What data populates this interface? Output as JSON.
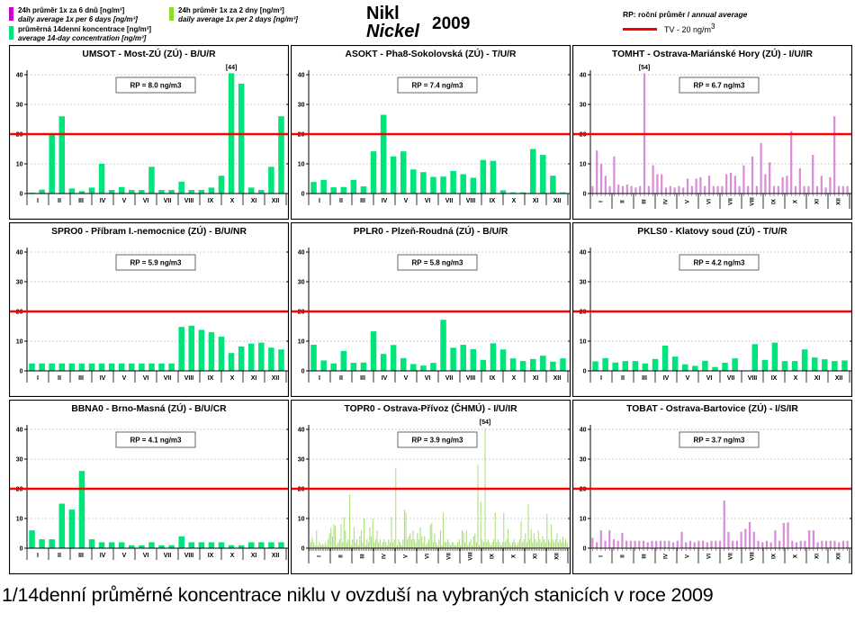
{
  "header": {
    "title_cs": "Nikl",
    "title_en": "Nickel",
    "year": "2009",
    "legends": {
      "six_day": {
        "color": "#CC00CC",
        "line1": "24h průměr 1x za 6 dnů [ng/m³]",
        "line2": "daily average 1x per 6 days [ng/m³]"
      },
      "fourteen_day": {
        "color": "#00E47C",
        "line1": "průměrná 14denní koncentrace [ng/m³]",
        "line2": "average 14-day concentration [ng/m³]"
      },
      "two_day": {
        "color": "#8CDC28",
        "line1": "24h průměr 1x za 2 dny [ng/m³]",
        "line2": "daily average 1x per 2 days [ng/m³]"
      }
    },
    "rp_note_cs": "RP: roční průměr / ",
    "rp_note_en": "annual average",
    "tv_label": "TV  - 20 ng/m",
    "tv_sup": "3",
    "tv_color": "#FF0000"
  },
  "months": [
    "I",
    "II",
    "III",
    "IV",
    "V",
    "VI",
    "VII",
    "VIII",
    "IX",
    "X",
    "XI",
    "XII"
  ],
  "chart_data": [
    {
      "type": "bar",
      "station": "UMSOT",
      "title": "UMSOT - Most-ZÚ (ZÚ) - B/U/R",
      "rp_label": "RP = 8.0 ng/m3",
      "freq": "14day",
      "rotated_labels": false,
      "bar_color": "#00E47C",
      "ylim": [
        0,
        40
      ],
      "yticks": [
        0,
        10,
        20,
        30,
        40
      ],
      "tv_line": 20,
      "values": [
        0.3,
        1.3,
        20,
        26,
        1.7,
        0.8,
        2,
        10,
        1.2,
        2.2,
        1.2,
        1.2,
        9,
        1.2,
        1.2,
        4,
        1.2,
        1.2,
        2,
        6,
        44,
        37,
        2,
        1.2,
        9,
        26
      ],
      "annotations": [
        {
          "text": "[44]",
          "index": 20
        }
      ]
    },
    {
      "type": "bar",
      "station": "ASOKT",
      "title": "ASOKT - Pha8-Sokolovská (ZÚ) - T/U/R",
      "rp_label": "RP = 7.4 ng/m3",
      "freq": "14day",
      "rotated_labels": false,
      "bar_color": "#00E47C",
      "ylim": [
        0,
        40
      ],
      "yticks": [
        0,
        10,
        20,
        30,
        40
      ],
      "tv_line": 20,
      "values": [
        3.9,
        4.6,
        2.1,
        2.2,
        4.6,
        2.4,
        14.2,
        26.5,
        12.5,
        14.2,
        8.1,
        7.2,
        5.6,
        5.7,
        7.6,
        6.5,
        5.3,
        11.3,
        11,
        1.1,
        0.4,
        0.4,
        15,
        13,
        6,
        0.4
      ],
      "annotations": []
    },
    {
      "type": "bar",
      "station": "TOMHT",
      "title": "TOMHT - Ostrava-Mariánské Hory (ZÚ) - I/U/IR",
      "rp_label": "RP = 6.7 ng/m3",
      "freq": "6day",
      "rotated_labels": true,
      "bar_color": "#D98BD9",
      "ylim": [
        0,
        40
      ],
      "yticks": [
        0,
        10,
        20,
        30,
        40
      ],
      "tv_line": 20,
      "values": [
        2.5,
        14.5,
        10,
        6,
        2.5,
        12.5,
        3,
        2.5,
        3,
        2.5,
        2,
        2.5,
        54,
        2.5,
        9.5,
        6.5,
        6.5,
        2,
        2.5,
        2,
        2.5,
        2,
        5,
        2.5,
        5,
        5.5,
        2.5,
        6,
        2.5,
        2.5,
        2.5,
        6.5,
        7,
        6,
        2.5,
        9.5,
        2.5,
        12.5,
        2.5,
        17,
        6.5,
        10.5,
        2.5,
        2.5,
        5.5,
        6,
        21,
        2.5,
        8.5,
        2.5,
        2.5,
        13,
        2.5,
        6,
        2,
        5.5,
        26,
        2.5,
        2.5,
        2.5
      ],
      "annotations": [
        {
          "text": "[54]",
          "index": 12
        }
      ]
    },
    {
      "type": "bar",
      "station": "SPRO0",
      "title": "SPRO0 - Příbram I.-nemocnice (ZÚ) - B/U/NR",
      "rp_label": "RP = 5.9 ng/m3",
      "freq": "14day",
      "rotated_labels": false,
      "bar_color": "#00E47C",
      "ylim": [
        0,
        40
      ],
      "yticks": [
        0,
        10,
        20,
        30,
        40
      ],
      "tv_line": 20,
      "values": [
        2.5,
        2.5,
        2.5,
        2.5,
        2.5,
        2.5,
        2.5,
        2.5,
        2.5,
        2.5,
        2.5,
        2.5,
        2.5,
        2.5,
        2.5,
        14.8,
        15.2,
        13.8,
        13,
        11.5,
        6,
        8.2,
        9.2,
        9.5,
        7.8,
        7.2
      ],
      "annotations": []
    },
    {
      "type": "bar",
      "station": "PPLR0",
      "title": "PPLR0 - Plzeň-Roudná (ZÚ) - B/U/R",
      "rp_label": "RP = 5.8 ng/m3",
      "freq": "14day",
      "rotated_labels": false,
      "bar_color": "#00E47C",
      "ylim": [
        0,
        40
      ],
      "yticks": [
        0,
        10,
        20,
        30,
        40
      ],
      "tv_line": 20,
      "values": [
        8.8,
        3.5,
        2.5,
        6.7,
        2.7,
        2.8,
        13.3,
        5.7,
        8.7,
        4.3,
        2.3,
        1.8,
        2.7,
        17.2,
        7.8,
        8.8,
        7.3,
        3.7,
        9.3,
        7.2,
        4.2,
        3.3,
        4,
        5.1,
        3.1,
        4.2
      ],
      "annotations": []
    },
    {
      "type": "bar",
      "station": "PKLS0",
      "title": "PKLS0 - Klatovy soud (ZÚ) - T/U/R",
      "rp_label": "RP = 4.2 ng/m3",
      "freq": "14day",
      "rotated_labels": false,
      "bar_color": "#00E47C",
      "ylim": [
        0,
        40
      ],
      "yticks": [
        0,
        10,
        20,
        30,
        40
      ],
      "tv_line": 20,
      "values": [
        3.2,
        4.3,
        2.8,
        3.3,
        3.3,
        2.5,
        4,
        8.5,
        4.8,
        2.2,
        1.7,
        3.4,
        1.3,
        2.7,
        4.2,
        0,
        9,
        3.7,
        9.5,
        3.3,
        3.3,
        7.2,
        4.5,
        3.9,
        3.3,
        3.5
      ],
      "annotations": []
    },
    {
      "type": "bar",
      "station": "BBNA0",
      "title": "BBNA0 - Brno-Masná (ZÚ) - B/U/CR",
      "rp_label": "RP = 4.1 ng/m3",
      "freq": "14day",
      "rotated_labels": false,
      "bar_color": "#00E47C",
      "ylim": [
        0,
        40
      ],
      "yticks": [
        0,
        10,
        20,
        30,
        40
      ],
      "tv_line": 20,
      "values": [
        6,
        3,
        3,
        15,
        13,
        26,
        3,
        2,
        2,
        2,
        1,
        1,
        2,
        1,
        1,
        4,
        2,
        2,
        2,
        2,
        1,
        1,
        2,
        2,
        2,
        2
      ],
      "annotations": []
    },
    {
      "type": "bar",
      "station": "TOPR0",
      "title": "TOPR0 - Ostrava-Přívoz (ČHMÚ) - I/U/IR",
      "rp_label": "RP = 3.9 ng/m3",
      "freq": "2day",
      "rotated_labels": true,
      "bar_color": "#A5DB70",
      "ylim": [
        0,
        40
      ],
      "yticks": [
        0,
        10,
        20,
        30,
        40
      ],
      "tv_line": 20,
      "values": [
        3,
        2,
        3.5,
        2,
        1,
        6,
        1,
        2,
        1,
        1.5,
        1,
        2,
        1,
        3,
        5,
        7,
        4,
        8,
        7.5,
        1,
        2,
        3,
        8,
        2,
        10.5,
        6,
        2,
        3,
        18,
        1,
        3,
        7,
        2,
        3,
        1,
        4,
        6,
        2,
        10,
        1,
        3,
        2,
        7,
        4,
        10,
        2,
        3,
        6,
        2,
        3,
        1,
        2,
        3,
        2,
        1,
        3,
        2,
        10.5,
        2,
        3,
        27,
        1,
        3,
        2,
        1,
        3,
        13,
        12,
        3,
        4,
        5,
        3,
        6,
        3,
        2,
        5,
        3,
        7,
        4,
        2,
        4,
        1,
        2,
        3,
        8,
        8.5,
        2,
        5,
        2,
        1,
        3,
        6,
        1,
        12,
        2,
        2,
        3,
        2,
        1,
        2,
        2,
        1,
        1,
        2,
        3,
        1,
        6,
        5.5,
        2,
        6,
        1,
        2,
        3,
        1,
        4,
        5,
        2,
        28,
        1,
        15.5,
        3,
        2,
        54,
        2,
        3,
        2,
        1,
        2,
        3,
        12,
        2,
        3,
        2,
        1,
        2,
        12,
        2,
        3,
        6.5,
        2,
        1,
        2,
        3,
        2,
        1,
        2,
        3,
        9,
        2,
        3,
        5,
        2,
        15,
        3,
        6.5,
        2,
        5,
        3,
        2,
        6,
        3,
        2,
        4,
        3,
        2,
        11.5,
        3,
        2,
        8,
        3,
        2,
        3,
        5,
        2,
        3,
        2,
        4,
        2,
        3,
        2
      ],
      "annotations": [
        {
          "text": "[54]",
          "index": 122
        }
      ]
    },
    {
      "type": "bar",
      "station": "TOBAT",
      "title": "TOBAT - Ostrava-Bartovice (ZÚ) - I/S/IR",
      "rp_label": "RP = 3.7 ng/m3",
      "freq": "6day",
      "rotated_labels": true,
      "bar_color": "#D98BD9",
      "ylim": [
        0,
        40
      ],
      "yticks": [
        0,
        10,
        20,
        30,
        40
      ],
      "tv_line": 20,
      "values": [
        3.5,
        2,
        6,
        2.5,
        6,
        3,
        2.5,
        5.2,
        2.5,
        2.5,
        2.5,
        2.5,
        2.5,
        2,
        2.5,
        2.5,
        2.5,
        2.5,
        2.5,
        2,
        2.5,
        5.5,
        2,
        2.5,
        2,
        2.5,
        2.5,
        2,
        2.5,
        2.5,
        2.5,
        16,
        5.5,
        2.5,
        2.5,
        5.5,
        6.5,
        8.8,
        5.5,
        2.5,
        2,
        2.5,
        2,
        6,
        2.5,
        8.5,
        8.7,
        2.5,
        2,
        2.5,
        2.5,
        6,
        6,
        2,
        2.5,
        2.5,
        2.5,
        2.5,
        2,
        2.5,
        2.5
      ],
      "annotations": []
    }
  ],
  "footer": {
    "caption": "1/14denní průměrné koncentrace niklu v ovzduší na vybraných stanicích v roce 2009"
  }
}
